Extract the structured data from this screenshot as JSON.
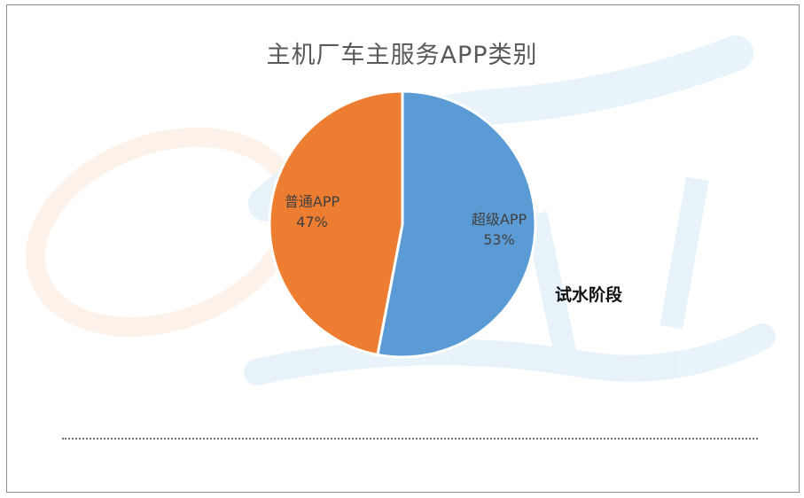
{
  "title": "主机厂车主服务APP类别",
  "annotation": "试水阶段",
  "chart_data": {
    "type": "pie",
    "title": "主机厂车主服务APP类别",
    "slices": [
      {
        "label": "超级APP",
        "value": 53,
        "display": "53%",
        "color": "#5b9bd5"
      },
      {
        "label": "普通APP",
        "value": 47,
        "display": "47%",
        "color": "#ed7d31"
      }
    ],
    "start": "12 o'clock",
    "direction": "clockwise"
  }
}
